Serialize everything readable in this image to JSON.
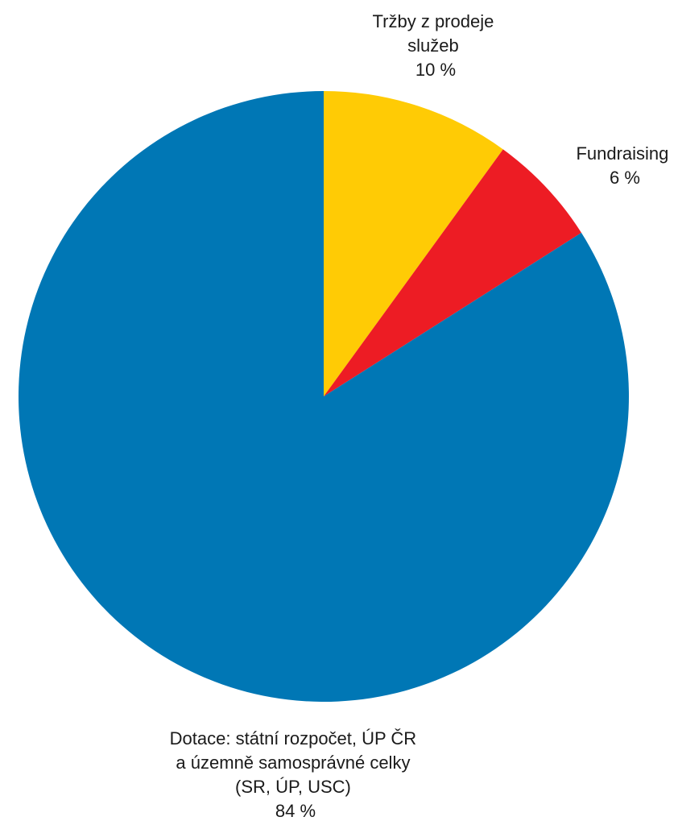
{
  "chart_data": {
    "type": "pie",
    "start_angle_deg": 0,
    "direction": "clockwise",
    "slices": [
      {
        "label_lines": [
          "Tržby z prodeje",
          "služeb"
        ],
        "value": 10,
        "value_label": "10 %",
        "color": "#ffcb05"
      },
      {
        "label_lines": [
          "Fundraising"
        ],
        "value": 6,
        "value_label": "6 %",
        "color": "#ed1c24"
      },
      {
        "label_lines": [
          "Dotace: státní rozpočet, ÚP ČR",
          "a územně samosprávné celky",
          "(SR, ÚP, USC)"
        ],
        "value": 84,
        "value_label": "84 %",
        "color": "#0077b5"
      }
    ]
  }
}
